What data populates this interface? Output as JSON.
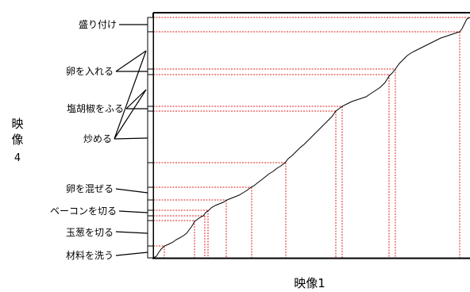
{
  "axes": {
    "x_title": "映像1",
    "y_title_chars": [
      "映",
      "像"
    ],
    "y_title_number": "4"
  },
  "steps": [
    {
      "label": "盛り付け"
    },
    {
      "label": "卵を入れる"
    },
    {
      "label": "塩胡椒をふる"
    },
    {
      "label": "炒める"
    },
    {
      "label": "卵を混ぜる"
    },
    {
      "label": "ベーコンを切る"
    },
    {
      "label": "玉葱を切る"
    },
    {
      "label": "材料を洗う"
    }
  ],
  "colors": {
    "axis": "#000000",
    "path": "#000000",
    "guide": "#e02020"
  }
}
